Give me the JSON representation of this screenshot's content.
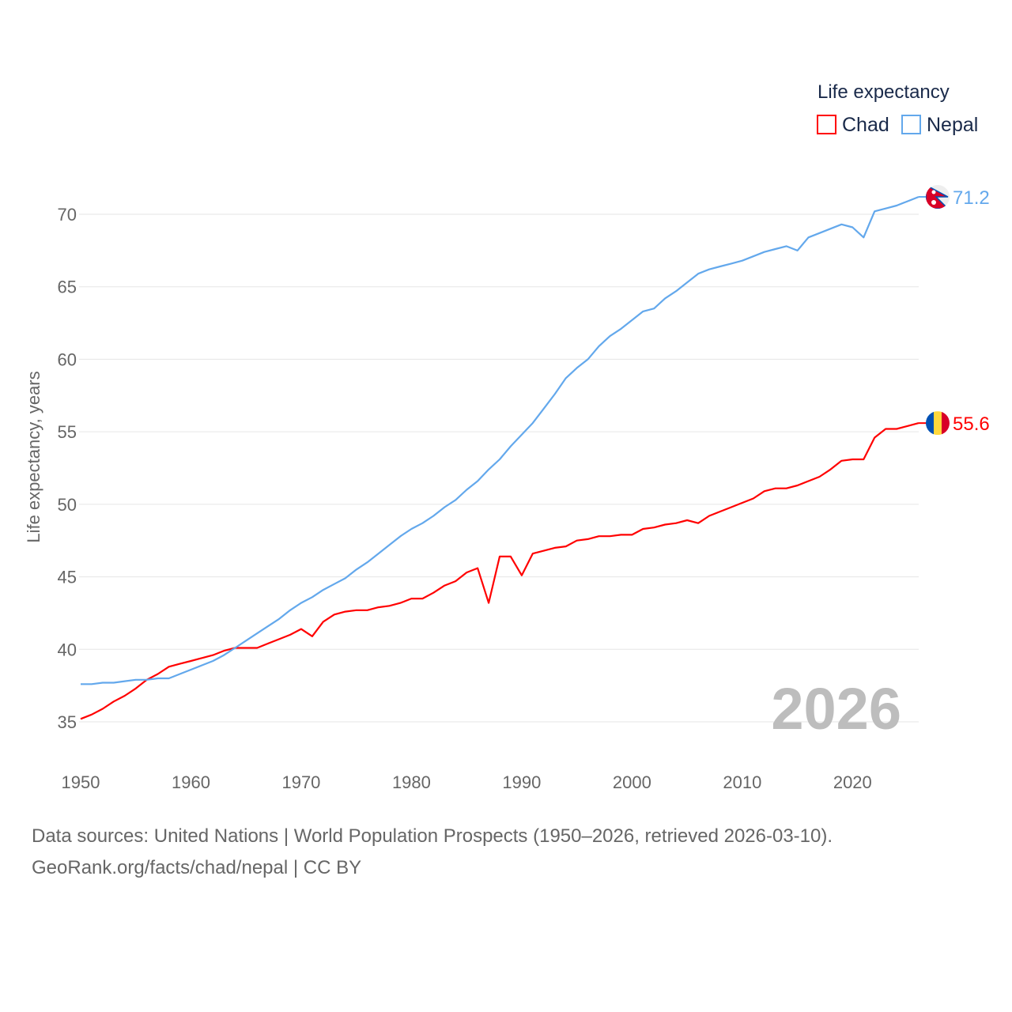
{
  "chart_data": {
    "type": "line",
    "title": "",
    "xlabel": "",
    "ylabel": "Life expectancy, years",
    "xlim": [
      1950,
      2026
    ],
    "ylim": [
      35,
      71.2
    ],
    "x_ticks": [
      1950,
      1960,
      1970,
      1980,
      1990,
      2000,
      2010,
      2020
    ],
    "y_ticks": [
      35,
      40,
      45,
      50,
      55,
      60,
      65,
      70
    ],
    "grid": true,
    "legend": {
      "title": "Life expectancy",
      "placement": "top-right"
    },
    "year_label": "2026",
    "x": [
      1950,
      1951,
      1952,
      1953,
      1954,
      1955,
      1956,
      1957,
      1958,
      1959,
      1960,
      1961,
      1962,
      1963,
      1964,
      1965,
      1966,
      1967,
      1968,
      1969,
      1970,
      1971,
      1972,
      1973,
      1974,
      1975,
      1976,
      1977,
      1978,
      1979,
      1980,
      1981,
      1982,
      1983,
      1984,
      1985,
      1986,
      1987,
      1988,
      1989,
      1990,
      1991,
      1992,
      1993,
      1994,
      1995,
      1996,
      1997,
      1998,
      1999,
      2000,
      2001,
      2002,
      2003,
      2004,
      2005,
      2006,
      2007,
      2008,
      2009,
      2010,
      2011,
      2012,
      2013,
      2014,
      2015,
      2016,
      2017,
      2018,
      2019,
      2020,
      2021,
      2022,
      2023,
      2024,
      2025,
      2026
    ],
    "series": [
      {
        "name": "Chad",
        "color": "#ff0000",
        "end_label": "55.6",
        "flag": "chad-flag",
        "values": [
          35.2,
          35.5,
          35.9,
          36.4,
          36.8,
          37.3,
          37.9,
          38.3,
          38.8,
          39.0,
          39.2,
          39.4,
          39.6,
          39.9,
          40.1,
          40.1,
          40.1,
          40.4,
          40.7,
          41.0,
          41.4,
          40.9,
          41.9,
          42.4,
          42.6,
          42.7,
          42.7,
          42.9,
          43.0,
          43.2,
          43.5,
          43.5,
          43.9,
          44.4,
          44.7,
          45.3,
          45.6,
          43.2,
          46.4,
          46.4,
          45.1,
          46.6,
          46.8,
          47.0,
          47.1,
          47.5,
          47.6,
          47.8,
          47.8,
          47.9,
          47.9,
          48.3,
          48.4,
          48.6,
          48.7,
          48.9,
          48.7,
          49.2,
          49.5,
          49.8,
          50.1,
          50.4,
          50.9,
          51.1,
          51.1,
          51.3,
          51.6,
          51.9,
          52.4,
          53.0,
          53.1,
          53.1,
          54.6,
          55.2,
          55.2,
          55.4,
          55.6
        ]
      },
      {
        "name": "Nepal",
        "color": "#63a8ec",
        "end_label": "71.2",
        "flag": "nepal-flag",
        "values": [
          37.6,
          37.6,
          37.7,
          37.7,
          37.8,
          37.9,
          37.9,
          38.0,
          38.0,
          38.3,
          38.6,
          38.9,
          39.2,
          39.6,
          40.1,
          40.6,
          41.1,
          41.6,
          42.1,
          42.7,
          43.2,
          43.6,
          44.1,
          44.5,
          44.9,
          45.5,
          46.0,
          46.6,
          47.2,
          47.8,
          48.3,
          48.7,
          49.2,
          49.8,
          50.3,
          51.0,
          51.6,
          52.4,
          53.1,
          54.0,
          54.8,
          55.6,
          56.6,
          57.6,
          58.7,
          59.4,
          60.0,
          60.9,
          61.6,
          62.1,
          62.7,
          63.3,
          63.5,
          64.2,
          64.7,
          65.3,
          65.9,
          66.2,
          66.4,
          66.6,
          66.8,
          67.1,
          67.4,
          67.6,
          67.8,
          67.5,
          68.4,
          68.7,
          69.0,
          69.3,
          69.1,
          68.4,
          70.2,
          70.4,
          70.6,
          70.9,
          71.2
        ]
      }
    ]
  },
  "footer": {
    "line1": "Data sources: United Nations | World Population Prospects (1950–2026, retrieved 2026-03-10).",
    "line2": "GeoRank.org/facts/chad/nepal | CC BY"
  }
}
